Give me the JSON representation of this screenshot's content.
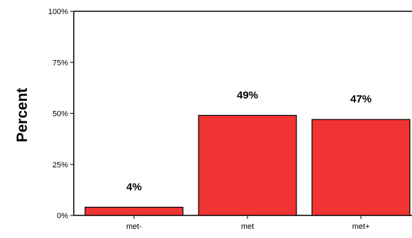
{
  "chart_data": {
    "type": "bar",
    "categories": [
      "met-",
      "met",
      "met+"
    ],
    "values": [
      4,
      49,
      47
    ],
    "data_labels": [
      "4%",
      "49%",
      "47%"
    ],
    "ylabel": "Percent",
    "ylim": [
      0,
      100
    ],
    "yticks": [
      0,
      25,
      50,
      75,
      100
    ],
    "ytick_labels": [
      "0%",
      "25%",
      "50%",
      "75%",
      "100%"
    ],
    "grid": false,
    "bar_color": "#f03434",
    "bar_edge_color": "#000000"
  }
}
